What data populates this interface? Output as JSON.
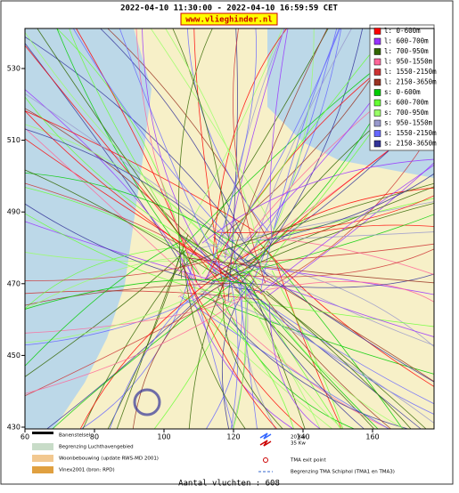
{
  "header": {
    "period": "2022-04-10 11:30:00 - 2022-04-10 16:59:59 CET",
    "site": "www.vlieghinder.nl"
  },
  "axes": {
    "yticks": [
      530,
      510,
      490,
      470,
      450,
      430
    ],
    "xticks": [
      60,
      80,
      100,
      120,
      140,
      160
    ]
  },
  "legend": [
    {
      "label": "l: 0-600m",
      "color": "#ff0000"
    },
    {
      "label": "l: 600-700m",
      "color": "#9933ff"
    },
    {
      "label": "l: 700-950m",
      "color": "#336600"
    },
    {
      "label": "l: 950-1550m",
      "color": "#ff6699"
    },
    {
      "label": "l: 1550-2150m",
      "color": "#cc3333"
    },
    {
      "label": "l: 2150-3650m",
      "color": "#993322"
    },
    {
      "label": "s: 0-600m",
      "color": "#00cc00"
    },
    {
      "label": "s: 600-700m",
      "color": "#66ff33"
    },
    {
      "label": "s: 700-950m",
      "color": "#99ff66"
    },
    {
      "label": "s: 950-1550m",
      "color": "#9999cc"
    },
    {
      "label": "s: 1550-2150m",
      "color": "#6666ff"
    },
    {
      "label": "s: 2150-3650m",
      "color": "#333399"
    }
  ],
  "footer": {
    "items": [
      "Banenstelsel",
      "Begrenzing Luchthavengebied",
      "Woonbebouwing (update RWS-MD 2001)",
      "Vinex2001 (bron: RPD)"
    ],
    "noise": [
      "20 Kw",
      "35 Kw"
    ],
    "tma_exit": "TMA exit point",
    "tma_border": "Begrenzing TMA Schiphol  (TMA1 en TMA3)",
    "count": "Aantal vluchten : 608"
  }
}
